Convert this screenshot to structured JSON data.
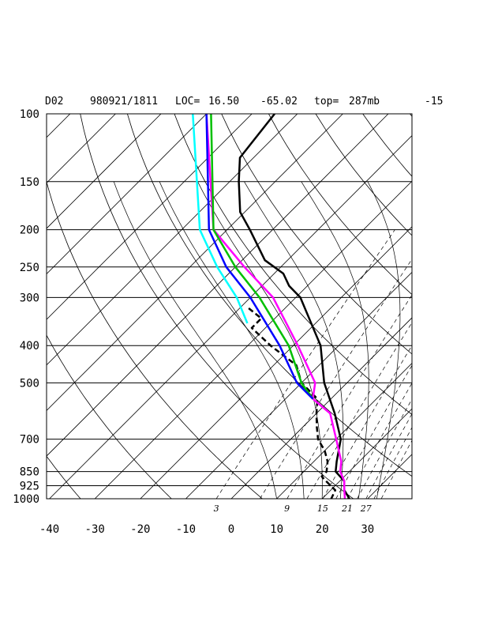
{
  "header": {
    "domain": "D02",
    "datetime": "980921/1811",
    "loc_label": "LOC=",
    "lat": "16.50",
    "lon": "-65.02",
    "top_label": "top=",
    "top_value": "287mb",
    "right_value": "-15"
  },
  "chart_data": {
    "type": "skew-t",
    "title": "D02   980921/1811 LOC= 16.50   -65.02  top= 287mb   -15",
    "pressure_ticks": [
      100,
      150,
      200,
      250,
      300,
      400,
      500,
      700,
      850,
      925,
      1000
    ],
    "pressure_tick_labels": [
      "100",
      "150",
      "200",
      "250",
      "300",
      "400",
      "500",
      "700",
      "850",
      "925",
      "1000"
    ],
    "temperature_ticks": [
      -40,
      -30,
      -20,
      -10,
      0,
      10,
      20,
      30
    ],
    "temperature_tick_labels": [
      "-40",
      "-30",
      "-20",
      "-10",
      "0",
      "10",
      "20",
      "30"
    ],
    "ylim": [
      1000,
      100
    ],
    "xlim": [
      -40,
      40
    ],
    "y_scale": "log-pressure",
    "skew": "isotherms slanted 45 degrees",
    "grid": true,
    "mixing_ratio_labels": [
      "3",
      "9",
      "15",
      "21",
      "27"
    ],
    "mixing_ratio_values": [
      3,
      9,
      15,
      21,
      27
    ],
    "series": [
      {
        "color": "#000000",
        "style": "solid",
        "width": 2.5,
        "p": [
          100,
          130,
          150,
          180,
          200,
          240,
          260,
          280,
          300,
          400,
          500,
          600,
          700,
          800,
          850,
          900,
          925,
          950,
          1000
        ],
        "t": [
          -75,
          -73,
          -68,
          -61,
          -55,
          -45,
          -38,
          -34,
          -29,
          -14,
          -5,
          4,
          11,
          15,
          17,
          21,
          22,
          23,
          26
        ]
      },
      {
        "color": "#000000",
        "style": "dashed",
        "width": 2.5,
        "p": [
          320,
          340,
          360,
          400,
          450,
          500,
          550,
          600,
          650,
          700,
          750,
          800,
          850,
          875,
          900,
          925,
          950,
          1000
        ],
        "t": [
          -38,
          -33,
          -33,
          -25,
          -15,
          -10,
          -3,
          0,
          3,
          6,
          10,
          13,
          15,
          15,
          17,
          19,
          21,
          22
        ]
      },
      {
        "color": "#ff00ff",
        "style": "solid",
        "width": 2.5,
        "p": [
          100,
          200,
          250,
          300,
          400,
          500,
          550,
          600,
          700,
          800,
          850,
          900,
          950,
          1000
        ],
        "t": [
          -90,
          -63,
          -48,
          -35,
          -19,
          -7,
          -4,
          3,
          10,
          16,
          18,
          21,
          23,
          25
        ]
      },
      {
        "color": "#00c000",
        "style": "solid",
        "width": 2.5,
        "p": [
          100,
          200,
          250,
          300,
          400,
          500,
          550
        ],
        "t": [
          -89,
          -63,
          -50,
          -38,
          -21,
          -10,
          -4
        ]
      },
      {
        "color": "#0000ff",
        "style": "solid",
        "width": 2.5,
        "p": [
          100,
          200,
          250,
          300,
          400,
          500,
          550
        ],
        "t": [
          -90,
          -64,
          -52,
          -40,
          -23,
          -11,
          -4
        ]
      },
      {
        "color": "#00ffff",
        "style": "solid",
        "width": 2.5,
        "p": [
          100,
          200,
          250,
          300,
          350
        ],
        "t": [
          -93,
          -66,
          -54,
          -43,
          -35
        ]
      }
    ]
  }
}
